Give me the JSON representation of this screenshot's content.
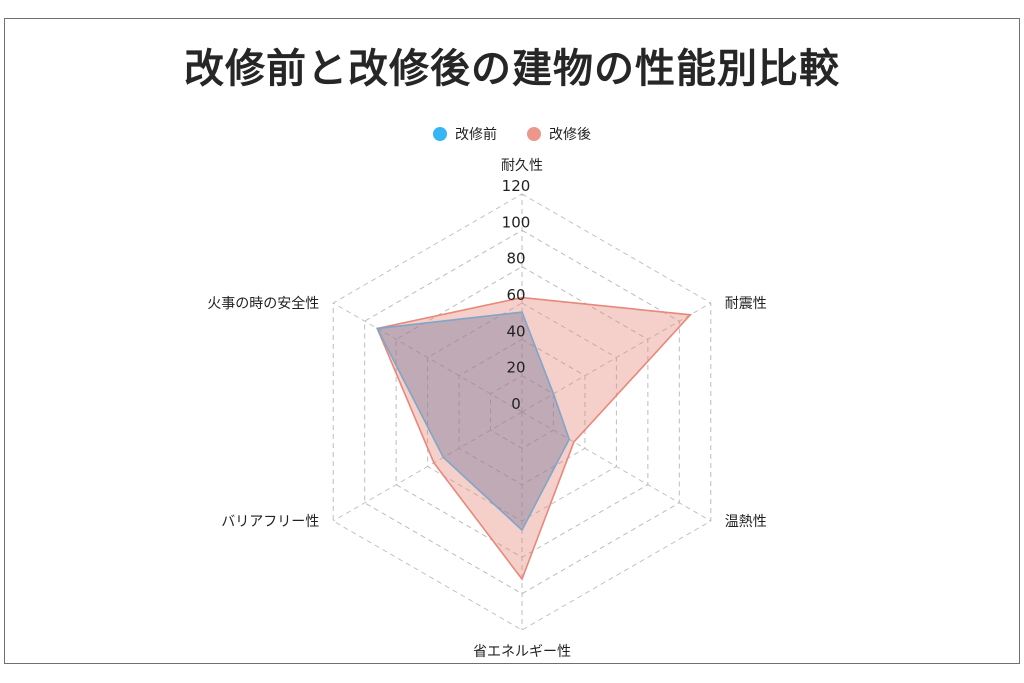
{
  "title": "改修前と改修後の建物の性能別比較",
  "chart_data": {
    "type": "radar",
    "title": "改修前と改修後の建物の性能別比較",
    "categories": [
      "耐久性",
      "耐震性",
      "温熱性",
      "省エネルギー性",
      "バリアフリー性",
      "火事の時の安全性"
    ],
    "rmin": 0,
    "rmax": 120,
    "ticks": [
      0,
      20,
      40,
      60,
      80,
      100,
      120
    ],
    "grid": true,
    "legend_position": "top",
    "series": [
      {
        "name": "改修前",
        "values": [
          55,
          20,
          30,
          65,
          50,
          92
        ],
        "color": "#36b5f5",
        "line": "#7fa6c8",
        "fill": "rgba(117,120,158,0.42)"
      },
      {
        "name": "改修後",
        "values": [
          63,
          107,
          33,
          92,
          56,
          92
        ],
        "color": "#ed968a",
        "line": "#e8887a",
        "fill": "rgba(230,128,112,0.38)"
      }
    ]
  }
}
